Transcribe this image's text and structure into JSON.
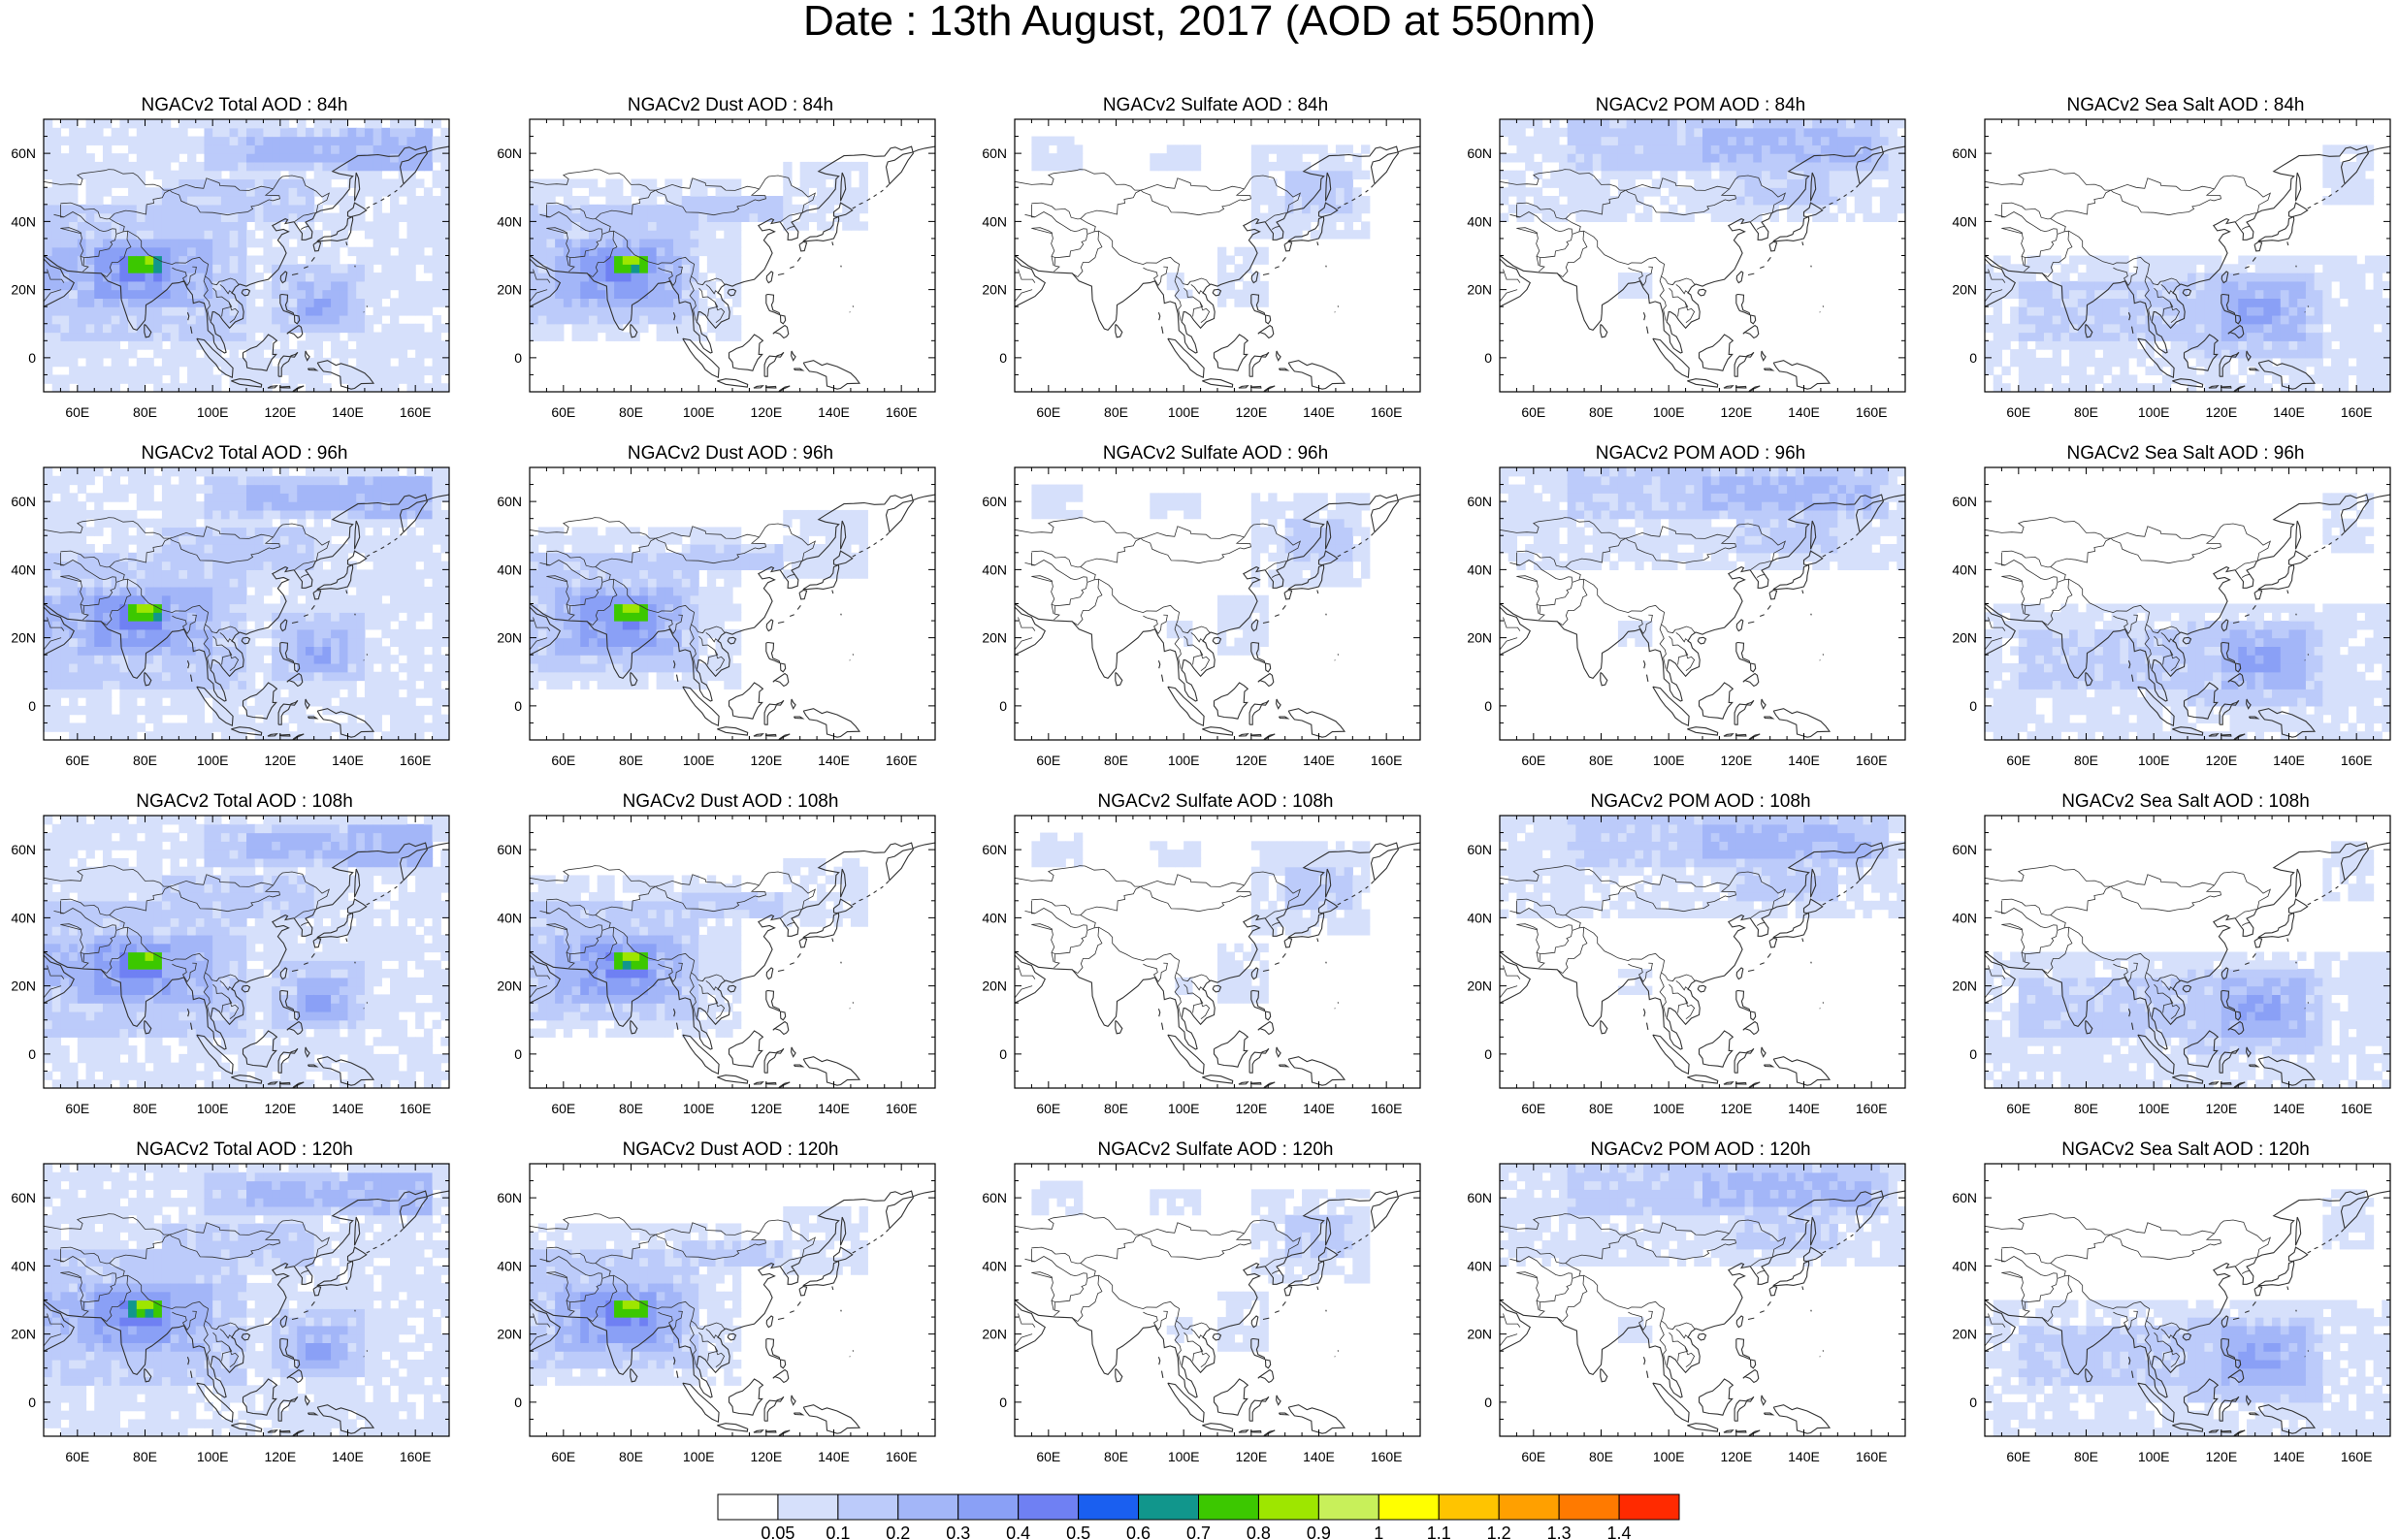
{
  "title": "Date : 13th August, 2017 (AOD at 550nm)",
  "lon_ticks": [
    "60E",
    "80E",
    "100E",
    "120E",
    "140E",
    "160E"
  ],
  "lat_ticks": [
    "60N",
    "40N",
    "20N",
    "0"
  ],
  "lon_range": [
    50,
    170
  ],
  "lat_range": [
    -10,
    70
  ],
  "panels": [
    {
      "row": 0,
      "col": 0,
      "title": "NGACv2 Total AOD : 84h",
      "species": "total"
    },
    {
      "row": 0,
      "col": 1,
      "title": "NGACv2 Dust AOD : 84h",
      "species": "dust"
    },
    {
      "row": 0,
      "col": 2,
      "title": "NGACv2 Sulfate AOD : 84h",
      "species": "sulfate"
    },
    {
      "row": 0,
      "col": 3,
      "title": "NGACv2 POM AOD : 84h",
      "species": "pom"
    },
    {
      "row": 0,
      "col": 4,
      "title": "NGACv2 Sea Salt AOD : 84h",
      "species": "seasalt"
    },
    {
      "row": 1,
      "col": 0,
      "title": "NGACv2 Total AOD : 96h",
      "species": "total"
    },
    {
      "row": 1,
      "col": 1,
      "title": "NGACv2 Dust AOD : 96h",
      "species": "dust"
    },
    {
      "row": 1,
      "col": 2,
      "title": "NGACv2 Sulfate AOD : 96h",
      "species": "sulfate"
    },
    {
      "row": 1,
      "col": 3,
      "title": "NGACv2 POM AOD : 96h",
      "species": "pom"
    },
    {
      "row": 1,
      "col": 4,
      "title": "NGACv2 Sea Salt AOD : 96h",
      "species": "seasalt"
    },
    {
      "row": 2,
      "col": 0,
      "title": "NGACv2 Total AOD : 108h",
      "species": "total"
    },
    {
      "row": 2,
      "col": 1,
      "title": "NGACv2 Dust AOD : 108h",
      "species": "dust"
    },
    {
      "row": 2,
      "col": 2,
      "title": "NGACv2 Sulfate AOD : 108h",
      "species": "sulfate"
    },
    {
      "row": 2,
      "col": 3,
      "title": "NGACv2 POM AOD : 108h",
      "species": "pom"
    },
    {
      "row": 2,
      "col": 4,
      "title": "NGACv2 Sea Salt AOD : 108h",
      "species": "seasalt"
    },
    {
      "row": 3,
      "col": 0,
      "title": "NGACv2 Total AOD : 120h",
      "species": "total"
    },
    {
      "row": 3,
      "col": 1,
      "title": "NGACv2 Dust AOD : 120h",
      "species": "dust"
    },
    {
      "row": 3,
      "col": 2,
      "title": "NGACv2 Sulfate AOD : 120h",
      "species": "sulfate"
    },
    {
      "row": 3,
      "col": 3,
      "title": "NGACv2 POM AOD : 120h",
      "species": "pom"
    },
    {
      "row": 3,
      "col": 4,
      "title": "NGACv2 Sea Salt  AOD : 120h",
      "species": "seasalt"
    }
  ],
  "colorbar": {
    "labels": [
      "0.05",
      "0.1",
      "0.2",
      "0.3",
      "0.4",
      "0.5",
      "0.6",
      "0.7",
      "0.8",
      "0.9",
      "1",
      "1.1",
      "1.2",
      "1.3",
      "1.4"
    ],
    "colors": [
      "#ffffff",
      "#d6e0fb",
      "#bccbfa",
      "#a3b6f8",
      "#8aa0f6",
      "#6f80f3",
      "#1a5ff0",
      "#11968c",
      "#3cc800",
      "#9ee600",
      "#c8f05a",
      "#ffff00",
      "#ffc400",
      "#ffa000",
      "#ff7a00",
      "#ff2a00"
    ]
  }
}
